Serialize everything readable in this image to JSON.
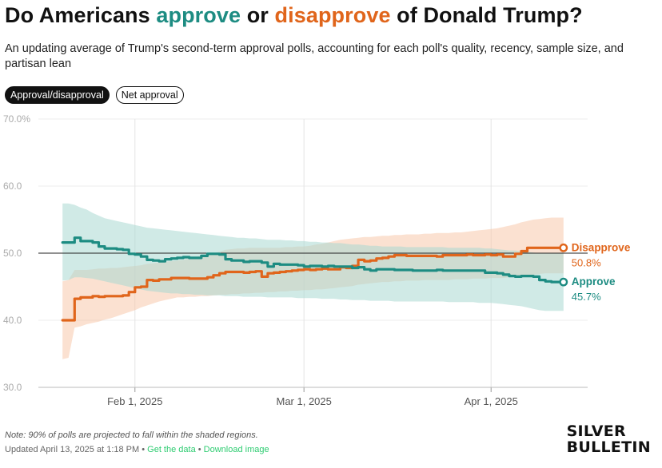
{
  "header": {
    "title_pre": "Do Americans ",
    "title_approve": "approve",
    "title_mid": " or ",
    "title_disapprove": "disapprove",
    "title_post": " of Donald Trump?",
    "subtitle": "An updating average of Trump's second-term approval polls, accounting for each poll's quality, recency, sample size, and partisan lean"
  },
  "toggle": {
    "option_1": "Approval/disapproval",
    "option_2": "Net approval"
  },
  "colors": {
    "approve": "#1d8c82",
    "disapprove": "#e0651b",
    "approve_band": "#a9d8d2",
    "disapprove_band": "#f7c9ab"
  },
  "chart_data": {
    "type": "line",
    "title": "",
    "xlabel": "",
    "ylabel": "",
    "x_start": "2025-01-20",
    "x_end": "2025-04-13",
    "xlim": [
      "2025-01-16",
      "2025-04-17"
    ],
    "ylim": [
      30,
      70
    ],
    "yticks": [
      30,
      40,
      50,
      60,
      70
    ],
    "ytick_labels": [
      "30.0",
      "40.0",
      "50.0",
      "60.0",
      "70.0%"
    ],
    "xticks": [
      "2025-02-01",
      "2025-03-01",
      "2025-04-01"
    ],
    "xtick_labels": [
      "Feb 1, 2025",
      "Mar 1, 2025",
      "Apr 1, 2025"
    ],
    "reference_line": 50,
    "grid": "vertical",
    "legend": "end-of-line labels",
    "series": [
      {
        "name": "Disapprove",
        "end_label": "50.8%",
        "values": [
          40.0,
          40.0,
          43.2,
          43.4,
          43.4,
          43.6,
          43.5,
          43.6,
          43.6,
          43.6,
          43.7,
          44.2,
          44.9,
          45.0,
          46.0,
          45.9,
          46.1,
          46.1,
          46.3,
          46.3,
          46.3,
          46.2,
          46.2,
          46.2,
          46.4,
          46.7,
          47.0,
          47.2,
          47.2,
          47.2,
          47.1,
          47.2,
          47.3,
          46.5,
          47.0,
          47.1,
          47.2,
          47.3,
          47.4,
          47.5,
          47.6,
          47.5,
          47.6,
          47.7,
          47.6,
          47.6,
          47.9,
          47.8,
          48.1,
          49.0,
          48.8,
          48.9,
          49.2,
          49.3,
          49.5,
          49.7,
          49.7,
          49.6,
          49.6,
          49.6,
          49.6,
          49.6,
          49.5,
          49.7,
          49.7,
          49.7,
          49.7,
          49.8,
          49.7,
          49.7,
          49.8,
          49.7,
          49.8,
          49.5,
          49.5,
          49.9,
          50.3,
          50.8,
          50.8,
          50.8,
          50.8,
          50.8,
          50.8,
          50.8
        ],
        "upper": [
          45.8,
          46.0,
          47.5,
          47.5,
          47.5,
          47.6,
          47.7,
          47.7,
          47.8,
          47.8,
          47.9,
          48.0,
          48.1,
          48.2,
          48.4,
          48.5,
          48.6,
          48.7,
          48.8,
          48.9,
          49.0,
          49.2,
          49.4,
          49.6,
          49.8,
          50.0,
          50.2,
          50.5,
          50.6,
          50.7,
          50.7,
          50.8,
          50.8,
          50.8,
          50.8,
          50.8,
          50.8,
          50.9,
          50.9,
          51.0,
          51.0,
          51.1,
          51.3,
          51.4,
          51.6,
          51.8,
          52.0,
          52.1,
          52.2,
          52.3,
          52.4,
          52.4,
          52.5,
          52.6,
          52.6,
          52.7,
          52.7,
          52.8,
          52.8,
          52.8,
          52.9,
          52.9,
          53.0,
          53.0,
          53.0,
          53.1,
          53.1,
          53.2,
          53.3,
          53.4,
          53.5,
          53.6,
          53.7,
          53.9,
          54.1,
          54.3,
          54.6,
          54.8,
          55.0,
          55.1,
          55.2,
          55.3,
          55.3,
          55.3
        ],
        "lower": [
          34.2,
          34.4,
          38.9,
          39.1,
          39.4,
          39.6,
          39.8,
          40.1,
          40.3,
          40.6,
          40.9,
          41.2,
          41.5,
          41.9,
          42.2,
          42.5,
          42.8,
          43.0,
          43.2,
          43.4,
          43.4,
          43.5,
          43.5,
          43.6,
          43.6,
          43.7,
          43.8,
          43.8,
          43.9,
          43.9,
          44.0,
          44.0,
          44.1,
          44.1,
          44.2,
          44.2,
          44.3,
          44.3,
          44.4,
          44.4,
          44.5,
          44.5,
          44.6,
          44.6,
          44.7,
          44.8,
          44.9,
          45.0,
          45.1,
          45.3,
          45.4,
          45.5,
          45.6,
          45.7,
          45.7,
          45.8,
          45.8,
          45.9,
          45.9,
          45.9,
          46.0,
          46.0,
          46.0,
          46.0,
          46.0,
          46.1,
          46.1,
          46.1,
          46.2,
          46.2,
          46.2,
          46.3,
          46.3,
          46.3,
          46.4,
          46.5,
          46.6,
          46.7,
          46.8,
          46.9,
          47.0,
          47.0,
          47.0,
          47.0
        ]
      },
      {
        "name": "Approve",
        "end_label": "45.7%",
        "values": [
          51.6,
          51.6,
          52.3,
          51.8,
          51.8,
          51.6,
          51.0,
          50.7,
          50.7,
          50.6,
          50.5,
          49.9,
          49.8,
          49.5,
          49.0,
          48.9,
          48.8,
          49.1,
          49.2,
          49.3,
          49.4,
          49.3,
          49.3,
          49.6,
          49.9,
          49.9,
          49.8,
          49.1,
          48.9,
          48.9,
          48.7,
          48.8,
          48.8,
          48.6,
          48.0,
          48.4,
          48.3,
          48.3,
          48.3,
          48.2,
          48.0,
          48.1,
          48.1,
          48.0,
          48.1,
          48.0,
          48.0,
          48.0,
          47.8,
          47.9,
          47.6,
          47.4,
          47.6,
          47.6,
          47.6,
          47.5,
          47.5,
          47.5,
          47.4,
          47.4,
          47.4,
          47.4,
          47.5,
          47.4,
          47.4,
          47.4,
          47.4,
          47.4,
          47.4,
          47.4,
          47.1,
          47.1,
          47.0,
          46.8,
          46.6,
          46.5,
          46.6,
          46.6,
          46.5,
          46.0,
          45.8,
          45.7,
          45.7,
          45.7
        ],
        "upper": [
          57.4,
          57.4,
          57.2,
          56.8,
          56.5,
          56.0,
          55.6,
          55.2,
          55.0,
          54.8,
          54.6,
          54.4,
          54.2,
          54.0,
          53.8,
          53.7,
          53.6,
          53.5,
          53.4,
          53.3,
          53.2,
          53.1,
          53.0,
          52.9,
          52.8,
          52.7,
          52.6,
          52.5,
          52.4,
          52.3,
          52.3,
          52.2,
          52.2,
          52.1,
          52.0,
          52.0,
          52.0,
          51.9,
          51.9,
          51.8,
          51.8,
          51.7,
          51.7,
          51.6,
          51.6,
          51.5,
          51.5,
          51.4,
          51.3,
          51.3,
          51.2,
          51.1,
          51.1,
          51.0,
          51.0,
          51.0,
          51.0,
          50.9,
          50.9,
          50.9,
          50.9,
          50.9,
          50.9,
          50.9,
          50.8,
          50.8,
          50.8,
          50.8,
          50.8,
          50.8,
          50.7,
          50.7,
          50.6,
          50.5,
          50.4,
          50.4,
          50.3,
          50.2,
          50.1,
          50.0,
          50.0,
          50.0,
          50.0,
          50.0
        ],
        "lower": [
          45.9,
          46.0,
          46.4,
          46.4,
          46.3,
          46.2,
          46.0,
          45.8,
          45.6,
          45.4,
          45.2,
          45.0,
          44.8,
          44.6,
          44.4,
          44.3,
          44.2,
          44.1,
          44.0,
          44.0,
          43.9,
          43.9,
          43.8,
          43.8,
          43.7,
          43.7,
          43.7,
          43.6,
          43.6,
          43.6,
          43.5,
          43.5,
          43.5,
          43.5,
          43.4,
          43.4,
          43.4,
          43.4,
          43.4,
          43.3,
          43.3,
          43.3,
          43.3,
          43.2,
          43.2,
          43.2,
          43.1,
          43.1,
          43.0,
          43.0,
          43.0,
          42.9,
          42.9,
          42.9,
          42.9,
          42.8,
          42.8,
          42.8,
          42.8,
          42.8,
          42.8,
          42.8,
          42.8,
          42.8,
          42.7,
          42.7,
          42.7,
          42.7,
          42.7,
          42.6,
          42.6,
          42.6,
          42.5,
          42.4,
          42.3,
          42.2,
          42.1,
          41.9,
          41.7,
          41.5,
          41.4,
          41.4,
          41.4,
          41.4
        ]
      }
    ]
  },
  "footer": {
    "note": "Note: 90% of polls are projected to fall within the shaded regions.",
    "updated": "Updated April 13, 2025 at 1:18 PM • ",
    "get_data": "Get the data",
    "sep": " • ",
    "download": "Download image",
    "brand_line1": "SILVER",
    "brand_line2": "BULLETIN"
  }
}
